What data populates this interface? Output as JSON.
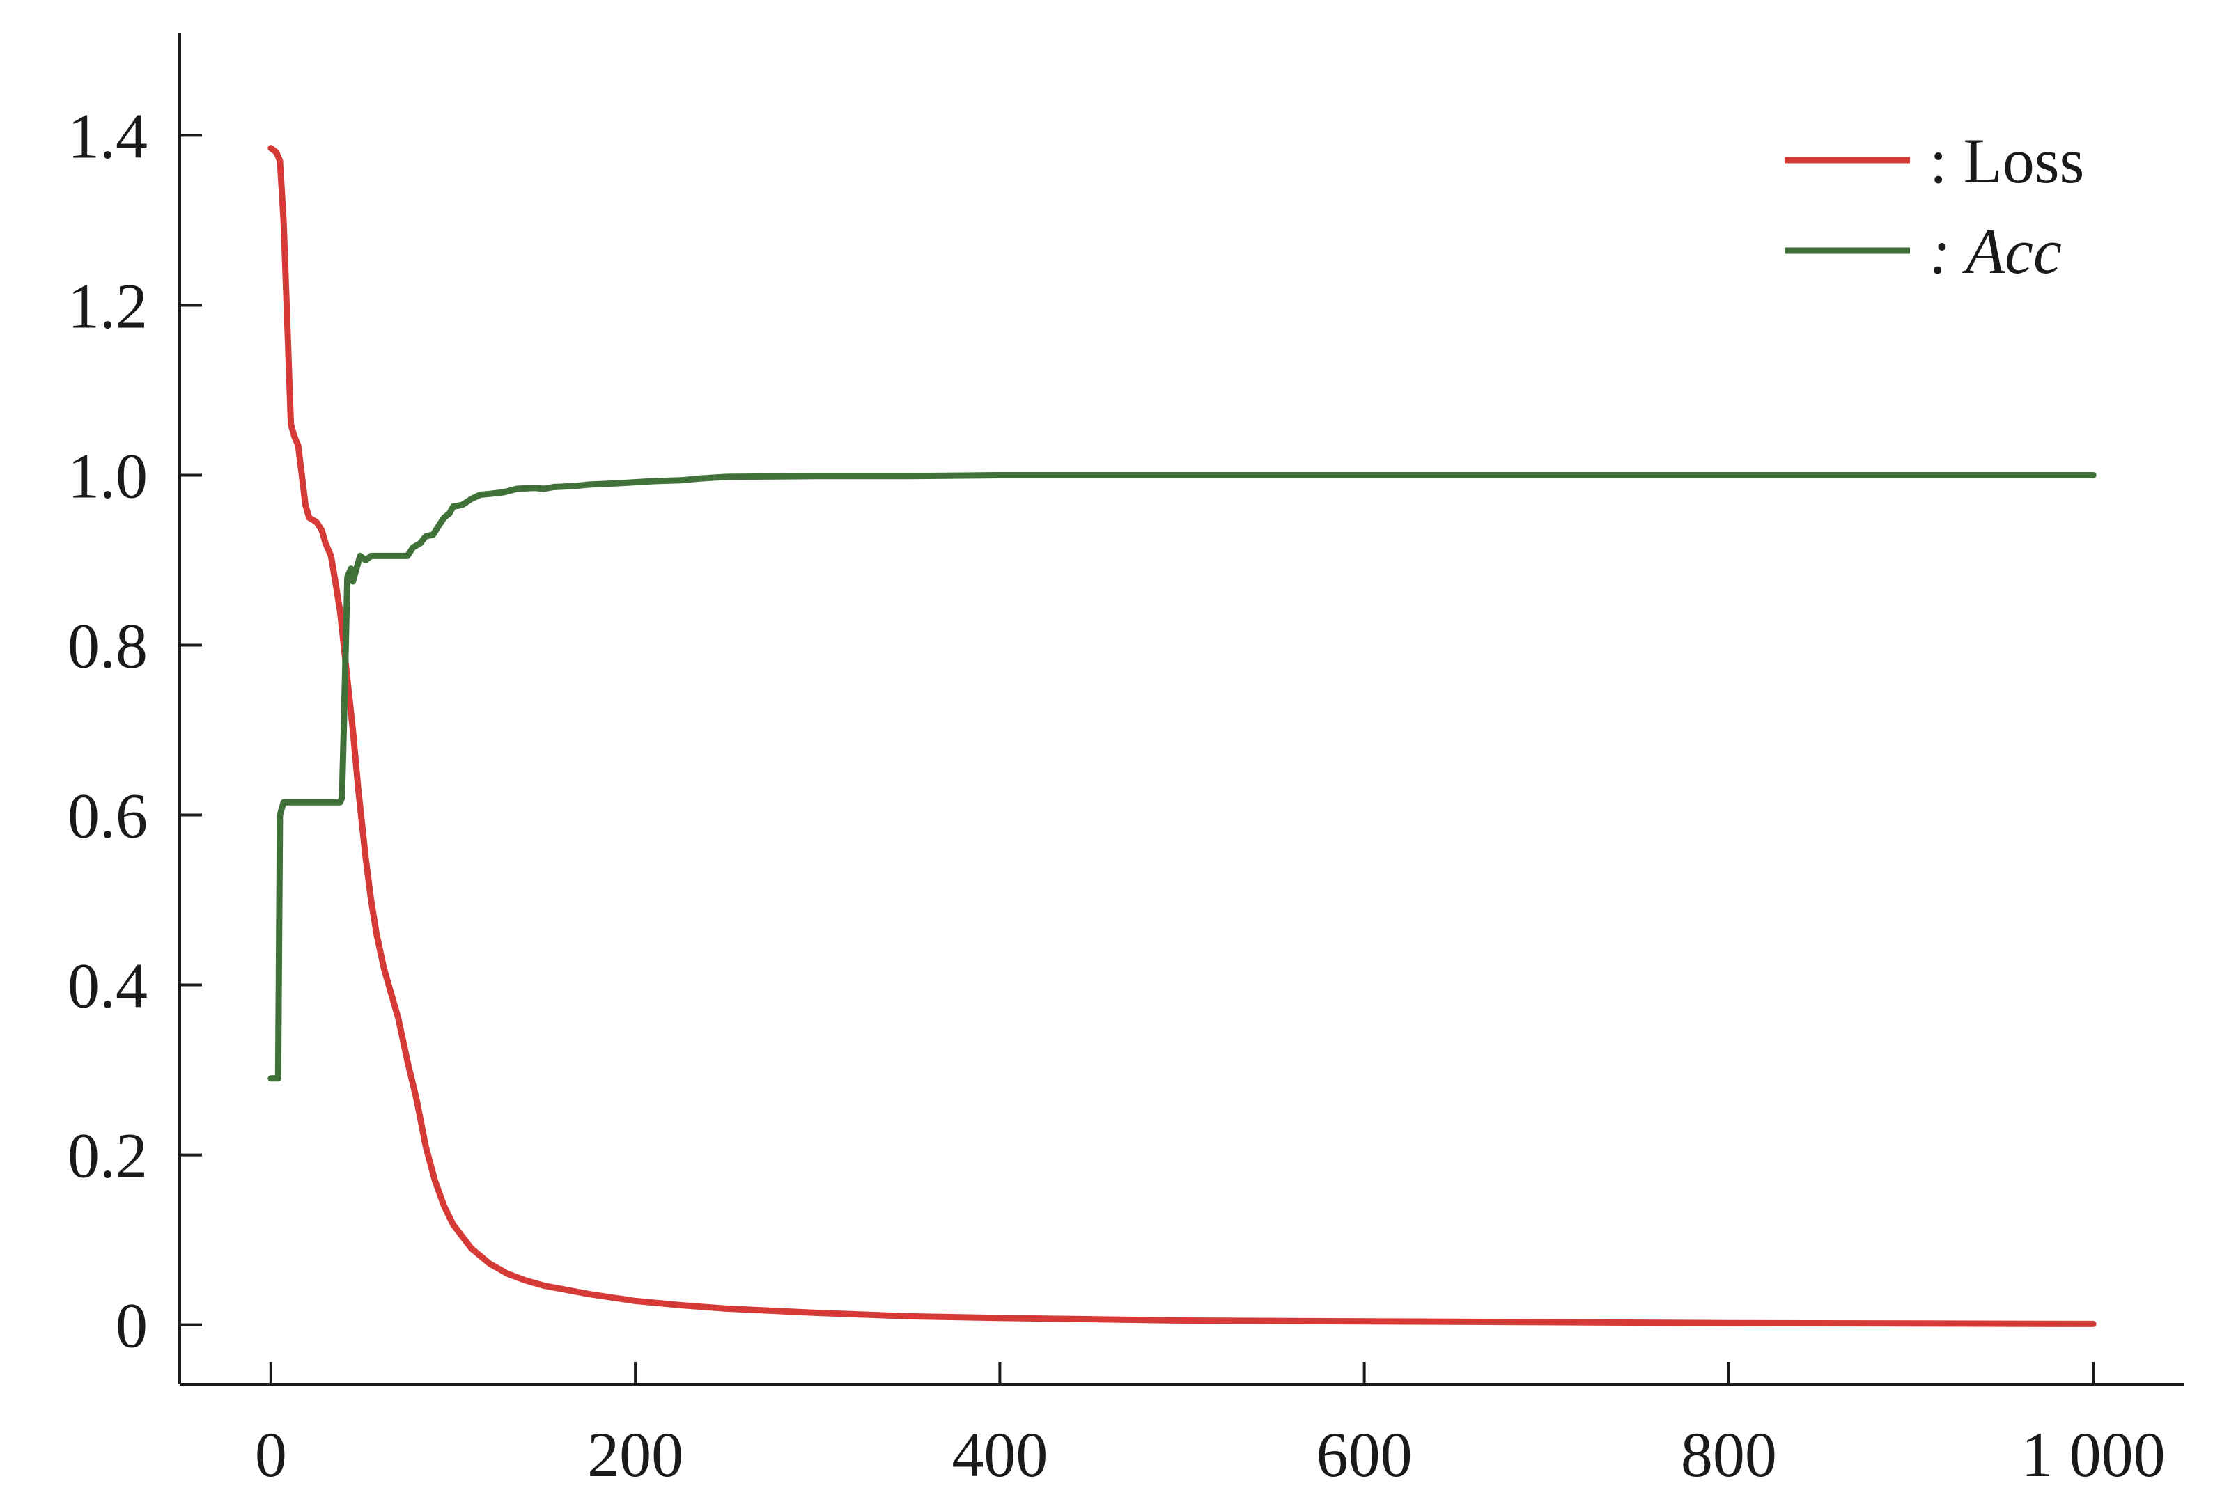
{
  "chart_data": {
    "type": "line",
    "title": "",
    "xlabel": "",
    "ylabel": "",
    "xlim": [
      -50,
      1050
    ],
    "ylim": [
      -0.07,
      1.52
    ],
    "x_ticks": [
      {
        "value": 0,
        "label": "0"
      },
      {
        "value": 200,
        "label": "200"
      },
      {
        "value": 400,
        "label": "400"
      },
      {
        "value": 600,
        "label": "600"
      },
      {
        "value": 800,
        "label": "800"
      },
      {
        "value": 1000,
        "label": "1 000"
      }
    ],
    "y_ticks": [
      {
        "value": 0,
        "label": "0"
      },
      {
        "value": 0.2,
        "label": "0.2"
      },
      {
        "value": 0.4,
        "label": "0.4"
      },
      {
        "value": 0.6,
        "label": "0.6"
      },
      {
        "value": 0.8,
        "label": "0.8"
      },
      {
        "value": 1.0,
        "label": "1.0"
      },
      {
        "value": 1.2,
        "label": "1.2"
      },
      {
        "value": 1.4,
        "label": "1.4"
      }
    ],
    "grid": false,
    "legend_position": "top-right",
    "series": [
      {
        "name": "Loss",
        "legend_label": ": Loss",
        "legend_italic": false,
        "color": "#d63a36",
        "points": [
          [
            0,
            1.385
          ],
          [
            3,
            1.38
          ],
          [
            5,
            1.37
          ],
          [
            7,
            1.3
          ],
          [
            9,
            1.18
          ],
          [
            11,
            1.06
          ],
          [
            13,
            1.045
          ],
          [
            15,
            1.035
          ],
          [
            17,
            1.0
          ],
          [
            19,
            0.965
          ],
          [
            21,
            0.95
          ],
          [
            25,
            0.945
          ],
          [
            28,
            0.935
          ],
          [
            30,
            0.92
          ],
          [
            33,
            0.905
          ],
          [
            35,
            0.88
          ],
          [
            38,
            0.84
          ],
          [
            40,
            0.8
          ],
          [
            42,
            0.76
          ],
          [
            45,
            0.7
          ],
          [
            48,
            0.63
          ],
          [
            52,
            0.55
          ],
          [
            55,
            0.5
          ],
          [
            58,
            0.46
          ],
          [
            62,
            0.42
          ],
          [
            66,
            0.39
          ],
          [
            70,
            0.36
          ],
          [
            75,
            0.31
          ],
          [
            80,
            0.265
          ],
          [
            85,
            0.21
          ],
          [
            90,
            0.17
          ],
          [
            95,
            0.14
          ],
          [
            100,
            0.118
          ],
          [
            110,
            0.09
          ],
          [
            120,
            0.072
          ],
          [
            130,
            0.06
          ],
          [
            140,
            0.052
          ],
          [
            150,
            0.046
          ],
          [
            175,
            0.036
          ],
          [
            200,
            0.028
          ],
          [
            225,
            0.023
          ],
          [
            250,
            0.019
          ],
          [
            300,
            0.014
          ],
          [
            350,
            0.01
          ],
          [
            400,
            0.008
          ],
          [
            500,
            0.005
          ],
          [
            600,
            0.004
          ],
          [
            700,
            0.003
          ],
          [
            800,
            0.002
          ],
          [
            900,
            0.0015
          ],
          [
            1000,
            0.001
          ]
        ]
      },
      {
        "name": "Acc",
        "legend_label": ": Acc",
        "legend_italic": true,
        "color": "#3f7139",
        "points": [
          [
            0,
            0.29
          ],
          [
            4,
            0.29
          ],
          [
            5,
            0.6
          ],
          [
            7,
            0.615
          ],
          [
            15,
            0.615
          ],
          [
            25,
            0.615
          ],
          [
            35,
            0.615
          ],
          [
            38,
            0.615
          ],
          [
            39,
            0.62
          ],
          [
            40,
            0.7
          ],
          [
            42,
            0.88
          ],
          [
            44,
            0.89
          ],
          [
            45,
            0.875
          ],
          [
            47,
            0.89
          ],
          [
            49,
            0.905
          ],
          [
            52,
            0.9
          ],
          [
            55,
            0.905
          ],
          [
            60,
            0.905
          ],
          [
            65,
            0.905
          ],
          [
            70,
            0.905
          ],
          [
            75,
            0.905
          ],
          [
            78,
            0.915
          ],
          [
            82,
            0.92
          ],
          [
            85,
            0.928
          ],
          [
            89,
            0.93
          ],
          [
            92,
            0.94
          ],
          [
            95,
            0.95
          ],
          [
            98,
            0.955
          ],
          [
            100,
            0.963
          ],
          [
            105,
            0.965
          ],
          [
            110,
            0.972
          ],
          [
            115,
            0.977
          ],
          [
            120,
            0.978
          ],
          [
            128,
            0.98
          ],
          [
            135,
            0.984
          ],
          [
            145,
            0.985
          ],
          [
            150,
            0.984
          ],
          [
            155,
            0.986
          ],
          [
            165,
            0.987
          ],
          [
            175,
            0.989
          ],
          [
            185,
            0.99
          ],
          [
            195,
            0.991
          ],
          [
            210,
            0.993
          ],
          [
            225,
            0.994
          ],
          [
            235,
            0.996
          ],
          [
            250,
            0.998
          ],
          [
            300,
            0.999
          ],
          [
            350,
            0.999
          ],
          [
            400,
            1.0
          ],
          [
            500,
            1.0
          ],
          [
            600,
            1.0
          ],
          [
            700,
            1.0
          ],
          [
            800,
            1.0
          ],
          [
            900,
            1.0
          ],
          [
            1000,
            1.0
          ]
        ]
      }
    ]
  }
}
